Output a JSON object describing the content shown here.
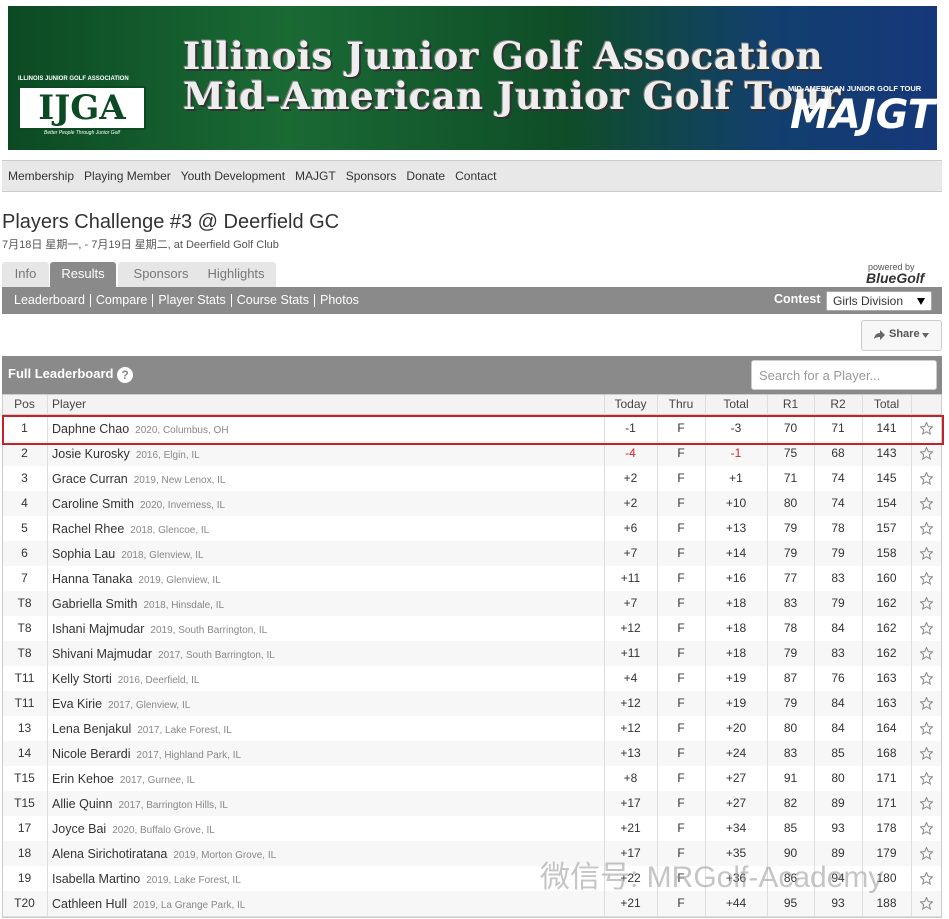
{
  "banner": {
    "left_org": "ILLINOIS JUNIOR GOLF ASSOCIATION",
    "left_logo": "IJGA",
    "left_tagline": "Better People Through Junior Golf",
    "title_line1": "Illinois Junior Golf Assocation",
    "title_line2": "Mid-American Junior Golf Tour",
    "right_org": "MID-AMERICAN JUNIOR GOLF TOUR",
    "right_logo": "MAJGT"
  },
  "nav": [
    "Membership",
    "Playing Member",
    "Youth Development",
    "MAJGT",
    "Sponsors",
    "Donate",
    "Contact"
  ],
  "event": {
    "title": "Players Challenge #3 @ Deerfield GC",
    "subtitle": "7月18日 星期一, - 7月19日 星期二, at Deerfield Golf Club"
  },
  "tabs": {
    "items": [
      "Info",
      "Results",
      "Sponsors",
      "Highlights"
    ],
    "active": 1,
    "powered_by": "powered by",
    "brand": "BlueGolf"
  },
  "subnav": {
    "links": [
      "Leaderboard",
      "Compare",
      "Player Stats",
      "Course Stats",
      "Photos"
    ],
    "contest_label": "Contest",
    "contest_value": "Girls Division"
  },
  "share": "Share",
  "leaderboard": {
    "title": "Full Leaderboard",
    "help": "?",
    "search_placeholder": "Search for a Player...",
    "columns": [
      "Pos",
      "Player",
      "Today",
      "Thru",
      "Total",
      "R1",
      "R2",
      "Total"
    ],
    "rows": [
      {
        "pos": "1",
        "player": "Daphne Chao",
        "info": "2020, Columbus, OH",
        "today": "-1",
        "thru": "F",
        "total": "-3",
        "r1": "70",
        "r2": "71",
        "sum": "141"
      },
      {
        "pos": "2",
        "player": "Josie Kurosky",
        "info": "2016, Elgin, IL",
        "today": "-4",
        "thru": "F",
        "total": "-1",
        "r1": "75",
        "r2": "68",
        "sum": "143"
      },
      {
        "pos": "3",
        "player": "Grace Curran",
        "info": "2019, New Lenox, IL",
        "today": "+2",
        "thru": "F",
        "total": "+1",
        "r1": "71",
        "r2": "74",
        "sum": "145"
      },
      {
        "pos": "4",
        "player": "Caroline Smith",
        "info": "2020, Inverness, IL",
        "today": "+2",
        "thru": "F",
        "total": "+10",
        "r1": "80",
        "r2": "74",
        "sum": "154"
      },
      {
        "pos": "5",
        "player": "Rachel Rhee",
        "info": "2018, Glencoe, IL",
        "today": "+6",
        "thru": "F",
        "total": "+13",
        "r1": "79",
        "r2": "78",
        "sum": "157"
      },
      {
        "pos": "6",
        "player": "Sophia Lau",
        "info": "2018, Glenview, IL",
        "today": "+7",
        "thru": "F",
        "total": "+14",
        "r1": "79",
        "r2": "79",
        "sum": "158"
      },
      {
        "pos": "7",
        "player": "Hanna Tanaka",
        "info": "2019, Glenview, IL",
        "today": "+11",
        "thru": "F",
        "total": "+16",
        "r1": "77",
        "r2": "83",
        "sum": "160"
      },
      {
        "pos": "T8",
        "player": "Gabriella Smith",
        "info": "2018, Hinsdale, IL",
        "today": "+7",
        "thru": "F",
        "total": "+18",
        "r1": "83",
        "r2": "79",
        "sum": "162"
      },
      {
        "pos": "T8",
        "player": "Ishani Majmudar",
        "info": "2019, South Barrington, IL",
        "today": "+12",
        "thru": "F",
        "total": "+18",
        "r1": "78",
        "r2": "84",
        "sum": "162"
      },
      {
        "pos": "T8",
        "player": "Shivani Majmudar",
        "info": "2017, South Barrington, IL",
        "today": "+11",
        "thru": "F",
        "total": "+18",
        "r1": "79",
        "r2": "83",
        "sum": "162"
      },
      {
        "pos": "T11",
        "player": "Kelly Storti",
        "info": "2016, Deerfield, IL",
        "today": "+4",
        "thru": "F",
        "total": "+19",
        "r1": "87",
        "r2": "76",
        "sum": "163"
      },
      {
        "pos": "T11",
        "player": "Eva Kirie",
        "info": "2017, Glenview, IL",
        "today": "+12",
        "thru": "F",
        "total": "+19",
        "r1": "79",
        "r2": "84",
        "sum": "163"
      },
      {
        "pos": "13",
        "player": "Lena Benjakul",
        "info": "2017, Lake Forest, IL",
        "today": "+12",
        "thru": "F",
        "total": "+20",
        "r1": "80",
        "r2": "84",
        "sum": "164"
      },
      {
        "pos": "14",
        "player": "Nicole Berardi",
        "info": "2017, Highland Park, IL",
        "today": "+13",
        "thru": "F",
        "total": "+24",
        "r1": "83",
        "r2": "85",
        "sum": "168"
      },
      {
        "pos": "T15",
        "player": "Erin Kehoe",
        "info": "2017, Gurnee, IL",
        "today": "+8",
        "thru": "F",
        "total": "+27",
        "r1": "91",
        "r2": "80",
        "sum": "171"
      },
      {
        "pos": "T15",
        "player": "Allie Quinn",
        "info": "2017, Barrington Hills, IL",
        "today": "+17",
        "thru": "F",
        "total": "+27",
        "r1": "82",
        "r2": "89",
        "sum": "171"
      },
      {
        "pos": "17",
        "player": "Joyce Bai",
        "info": "2020, Buffalo Grove, IL",
        "today": "+21",
        "thru": "F",
        "total": "+34",
        "r1": "85",
        "r2": "93",
        "sum": "178"
      },
      {
        "pos": "18",
        "player": "Alena Sirichotiratana",
        "info": "2019, Morton Grove, IL",
        "today": "+17",
        "thru": "F",
        "total": "+35",
        "r1": "90",
        "r2": "89",
        "sum": "179"
      },
      {
        "pos": "19",
        "player": "Isabella Martino",
        "info": "2019, Lake Forest, IL",
        "today": "+22",
        "thru": "F",
        "total": "+36",
        "r1": "86",
        "r2": "94",
        "sum": "180"
      },
      {
        "pos": "T20",
        "player": "Cathleen Hull",
        "info": "2019, La Grange Park, IL",
        "today": "+21",
        "thru": "F",
        "total": "+44",
        "r1": "95",
        "r2": "93",
        "sum": "188"
      }
    ]
  },
  "watermark": "微信号: MRGolf-Academy"
}
